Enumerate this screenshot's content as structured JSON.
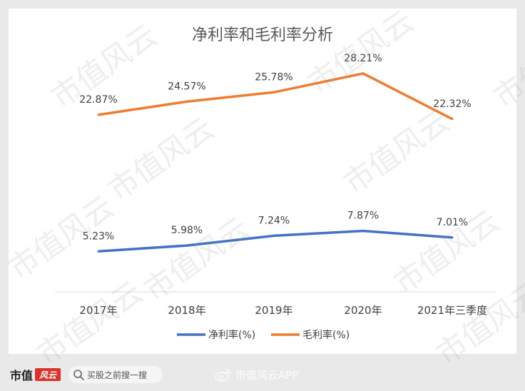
{
  "chart_data": {
    "type": "line",
    "title": "净利率和毛利率分析",
    "categories": [
      "2017年",
      "2018年",
      "2019年",
      "2020年",
      "2021年三季度"
    ],
    "series": [
      {
        "name": "净利率(%)",
        "values": [
          5.23,
          5.98,
          7.24,
          7.87,
          7.01
        ],
        "labels": [
          "5.23%",
          "5.98%",
          "7.24%",
          "7.87%",
          "7.01%"
        ],
        "color": "#4472c4"
      },
      {
        "name": "毛利率(%)",
        "values": [
          22.87,
          24.57,
          25.78,
          28.21,
          22.32
        ],
        "labels": [
          "22.87%",
          "24.57%",
          "25.78%",
          "28.21%",
          "22.32%"
        ],
        "color": "#ed7d31"
      }
    ],
    "ylim": [
      0,
      32
    ],
    "grid": false,
    "legend": "bottom"
  },
  "watermark": "市值风云",
  "footer": {
    "logo_text": "市值",
    "logo_seal": "风云",
    "search_text": "买股之前搜一搜",
    "weibo_text": "市值风云APP"
  },
  "colors": {
    "net": "#4472c4",
    "gross": "#ed7d31",
    "axis": "#d9d9d9",
    "text": "#595959"
  },
  "icons": [
    "search-icon",
    "weibo-icon"
  ]
}
